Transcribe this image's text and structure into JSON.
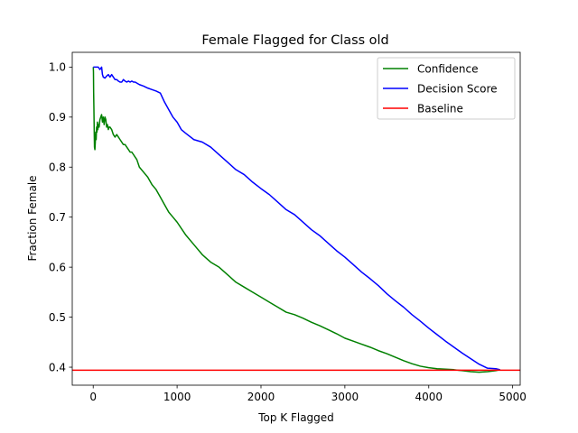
{
  "chart_data": {
    "type": "line",
    "title": "Female Flagged for Class old",
    "xlabel": "Top K Flagged",
    "ylabel": "Fraction Female",
    "xlim": [
      -250,
      5090
    ],
    "ylim": [
      0.364,
      1.0295
    ],
    "xticks": [
      0,
      1000,
      2000,
      3000,
      4000,
      5000
    ],
    "xtick_labels": [
      "0",
      "1000",
      "2000",
      "3000",
      "4000",
      "5000"
    ],
    "yticks": [
      0.4,
      0.5,
      0.6,
      0.7,
      0.8,
      0.9,
      1.0
    ],
    "ytick_labels": [
      "0.4",
      "0.5",
      "0.6",
      "0.7",
      "0.8",
      "0.9",
      "1.0"
    ],
    "grid": false,
    "legend_position": "upper right",
    "series": [
      {
        "name": "Confidence",
        "color": "#008000",
        "x": [
          1,
          3,
          5,
          8,
          12,
          15,
          20,
          25,
          30,
          35,
          40,
          45,
          50,
          55,
          60,
          70,
          80,
          90,
          100,
          110,
          120,
          130,
          140,
          150,
          160,
          170,
          180,
          190,
          200,
          220,
          240,
          260,
          280,
          300,
          320,
          340,
          360,
          380,
          400,
          420,
          440,
          460,
          480,
          500,
          520,
          550,
          600,
          650,
          700,
          750,
          800,
          850,
          900,
          950,
          1000,
          1100,
          1200,
          1300,
          1400,
          1500,
          1600,
          1700,
          1800,
          1900,
          2000,
          2100,
          2200,
          2300,
          2400,
          2500,
          2600,
          2700,
          2800,
          2900,
          3000,
          3100,
          3200,
          3300,
          3400,
          3500,
          3600,
          3700,
          3800,
          3900,
          4000,
          4100,
          4200,
          4300,
          4400,
          4500,
          4600,
          4700,
          4800,
          4850
        ],
        "y": [
          1.0,
          0.99,
          0.95,
          0.92,
          0.87,
          0.84,
          0.835,
          0.85,
          0.87,
          0.855,
          0.88,
          0.87,
          0.89,
          0.875,
          0.885,
          0.88,
          0.895,
          0.9,
          0.905,
          0.89,
          0.9,
          0.885,
          0.9,
          0.895,
          0.88,
          0.885,
          0.875,
          0.88,
          0.88,
          0.875,
          0.865,
          0.86,
          0.865,
          0.86,
          0.855,
          0.85,
          0.845,
          0.845,
          0.84,
          0.835,
          0.83,
          0.83,
          0.825,
          0.82,
          0.815,
          0.8,
          0.79,
          0.78,
          0.765,
          0.755,
          0.74,
          0.725,
          0.71,
          0.7,
          0.69,
          0.665,
          0.645,
          0.625,
          0.61,
          0.6,
          0.585,
          0.57,
          0.56,
          0.55,
          0.54,
          0.53,
          0.52,
          0.51,
          0.505,
          0.498,
          0.49,
          0.483,
          0.475,
          0.467,
          0.458,
          0.452,
          0.446,
          0.44,
          0.433,
          0.427,
          0.42,
          0.413,
          0.407,
          0.402,
          0.399,
          0.397,
          0.396,
          0.395,
          0.393,
          0.391,
          0.39,
          0.391,
          0.393,
          0.395
        ]
      },
      {
        "name": "Decision Score",
        "color": "#0000ff",
        "x": [
          1,
          5,
          10,
          20,
          40,
          60,
          80,
          100,
          110,
          120,
          140,
          160,
          180,
          200,
          220,
          240,
          260,
          280,
          300,
          320,
          340,
          360,
          380,
          400,
          420,
          440,
          460,
          480,
          500,
          550,
          600,
          650,
          700,
          750,
          800,
          850,
          900,
          950,
          1000,
          1050,
          1100,
          1200,
          1300,
          1400,
          1500,
          1600,
          1700,
          1800,
          1900,
          2000,
          2100,
          2200,
          2300,
          2400,
          2500,
          2600,
          2700,
          2800,
          2900,
          3000,
          3100,
          3200,
          3300,
          3400,
          3500,
          3600,
          3700,
          3800,
          3900,
          4000,
          4100,
          4200,
          4300,
          4400,
          4500,
          4600,
          4700,
          4800,
          4850
        ],
        "y": [
          1.0,
          1.0,
          1.0,
          1.0,
          1.0,
          1.0,
          0.995,
          1.0,
          0.985,
          0.98,
          0.978,
          0.982,
          0.985,
          0.98,
          0.985,
          0.98,
          0.975,
          0.975,
          0.972,
          0.97,
          0.97,
          0.975,
          0.972,
          0.97,
          0.972,
          0.97,
          0.972,
          0.97,
          0.97,
          0.965,
          0.962,
          0.958,
          0.955,
          0.952,
          0.948,
          0.93,
          0.915,
          0.9,
          0.89,
          0.875,
          0.868,
          0.855,
          0.85,
          0.84,
          0.825,
          0.81,
          0.795,
          0.785,
          0.77,
          0.757,
          0.745,
          0.73,
          0.715,
          0.705,
          0.69,
          0.675,
          0.663,
          0.648,
          0.633,
          0.62,
          0.605,
          0.59,
          0.577,
          0.563,
          0.547,
          0.533,
          0.52,
          0.505,
          0.492,
          0.478,
          0.465,
          0.452,
          0.44,
          0.428,
          0.417,
          0.406,
          0.398,
          0.397,
          0.395
        ]
      },
      {
        "name": "Baseline",
        "color": "#ff0000",
        "x": [
          -250,
          5090
        ],
        "y": [
          0.394,
          0.394
        ]
      }
    ]
  }
}
